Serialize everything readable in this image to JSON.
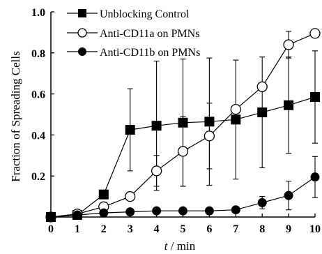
{
  "chart_data": {
    "type": "line",
    "title": "",
    "xlabel": "t / min",
    "ylabel": "Fraction of Spreading Cells",
    "xlim": [
      0,
      10
    ],
    "ylim": [
      0,
      1.0
    ],
    "x_ticks": [
      0,
      1,
      2,
      3,
      4,
      5,
      6,
      7,
      8,
      9,
      10
    ],
    "y_ticks": [
      0.2,
      0.4,
      0.6,
      0.8,
      1.0
    ],
    "y_tick_labels": [
      "0.2",
      "0.4",
      "0.6",
      "0.8",
      "1.0"
    ],
    "x_tick_labels": [
      "0",
      "1",
      "2",
      "3",
      "4",
      "5",
      "6",
      "7",
      "8",
      "9",
      "10"
    ],
    "grid": false,
    "legend_position": "top-left",
    "series": [
      {
        "name": "Unblocking Control",
        "marker": "filled-square",
        "color": "#000000",
        "x": [
          0,
          1,
          2,
          3,
          4,
          5,
          6,
          7,
          8,
          9,
          10
        ],
        "y": [
          0.0,
          0.01,
          0.11,
          0.425,
          0.445,
          0.46,
          0.465,
          0.475,
          0.51,
          0.545,
          0.585
        ],
        "err": [
          0,
          0,
          0,
          0.2,
          0.315,
          0.31,
          0.31,
          0.29,
          0.27,
          0.235,
          0.225
        ]
      },
      {
        "name": "Anti-CD11a on PMNs",
        "marker": "open-circle",
        "color": "#000000",
        "x": [
          0,
          1,
          2,
          3,
          4,
          5,
          6,
          7,
          8,
          9,
          10
        ],
        "y": [
          0.0,
          0.015,
          0.05,
          0.1,
          0.225,
          0.32,
          0.395,
          0.525,
          0.635,
          0.84,
          0.895
        ],
        "err": [
          0,
          0,
          0,
          0,
          0.075,
          0.17,
          0.16,
          0,
          0,
          0.065,
          0
        ]
      },
      {
        "name": "Anti-CD11b on PMNs",
        "marker": "filled-circle",
        "color": "#000000",
        "x": [
          0,
          1,
          2,
          3,
          4,
          5,
          6,
          7,
          8,
          9,
          10
        ],
        "y": [
          0.0,
          0.01,
          0.02,
          0.025,
          0.03,
          0.03,
          0.03,
          0.035,
          0.07,
          0.105,
          0.195
        ],
        "err": [
          0,
          0,
          0,
          0,
          0,
          0,
          0,
          0,
          0.03,
          0.07,
          0.1
        ]
      }
    ]
  }
}
